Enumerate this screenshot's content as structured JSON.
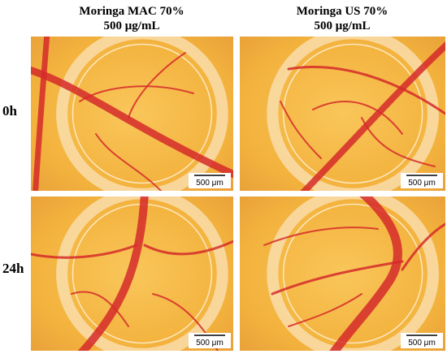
{
  "columns": [
    {
      "title": "Moringa MAC 70%",
      "concentration": "500 μg/mL"
    },
    {
      "title": "Moringa US 70%",
      "concentration": "500 μg/mL"
    }
  ],
  "rows": [
    {
      "label": "0h",
      "scale_bars": [
        "500 μm",
        "500 μm"
      ]
    },
    {
      "label": "24h",
      "scale_bars": [
        "500 μm",
        "500 μm"
      ]
    }
  ]
}
